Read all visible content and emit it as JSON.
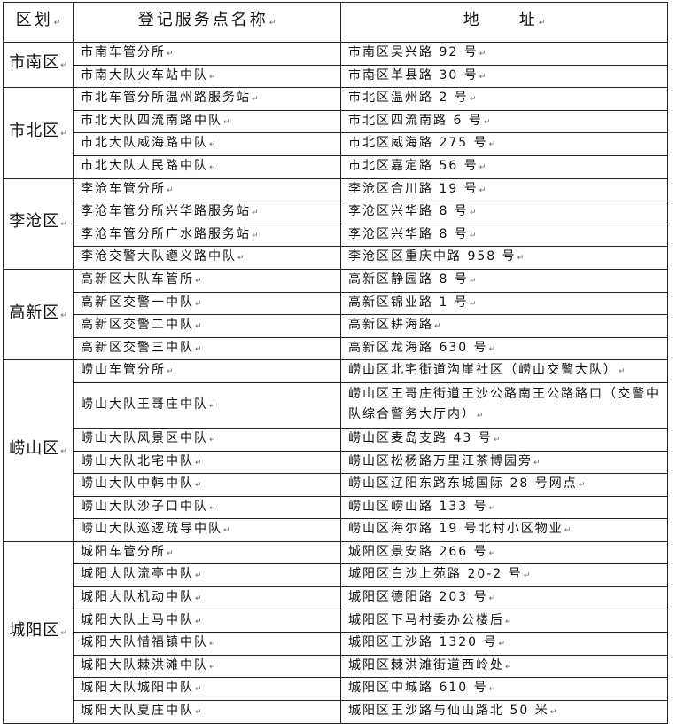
{
  "header": {
    "district": "区划",
    "name": "登记服务点名称",
    "address": "地　　址"
  },
  "groups": [
    {
      "district": "市南区",
      "rows": [
        [
          "市南车管分所",
          "市南区吴兴路 92 号"
        ],
        [
          "市南大队火车站中队",
          "市南区单县路 30 号"
        ]
      ]
    },
    {
      "district": "市北区",
      "rows": [
        [
          "市北车管分所温州路服务站",
          "市北区温州路 2 号"
        ],
        [
          "市北大队四流南路中队",
          "市北区四流南路 6 号"
        ],
        [
          "市北大队威海路中队",
          "市北区威海路 275 号"
        ],
        [
          "市北大队人民路中队",
          "市北区嘉定路 56 号"
        ]
      ]
    },
    {
      "district": "李沧区",
      "rows": [
        [
          "李沧车管分所",
          "李沧区合川路 19 号"
        ],
        [
          "李沧车管分所兴华路服务站",
          "李沧区兴华路 8 号"
        ],
        [
          "李沧车管分所广水路服务站",
          "李沧区兴华路 8 号"
        ],
        [
          "李沧交警大队遵义路中队",
          "李沧区区重庆中路 958 号"
        ]
      ]
    },
    {
      "district": "高新区",
      "rows": [
        [
          "高新区大队车管所",
          "高新区静园路 8 号"
        ],
        [
          "高新区交警一中队",
          "高新区锦业路 1 号"
        ],
        [
          "高新区交警二中队",
          "高新区耕海路"
        ],
        [
          "高新区交警三中队",
          "高新区龙海路 630 号"
        ]
      ]
    },
    {
      "district": "崂山区",
      "rows": [
        [
          "崂山车管分所",
          "崂山区北宅街道沟崖社区（崂山交警大队）"
        ],
        [
          "崂山大队王哥庄中队",
          "崂山区王哥庄街道王沙公路南王公路路口（交警中队综合警务大厅内）"
        ],
        [
          "崂山大队风景区中队",
          "崂山区麦岛支路 43 号"
        ],
        [
          "崂山大队北宅中队",
          "崂山区松杨路万里江茶博园旁"
        ],
        [
          "崂山大队中韩中队",
          "崂山区辽阳东路东城国际 28 号网点"
        ],
        [
          "崂山大队沙子口中队",
          "崂山区崂山路 133 号"
        ],
        [
          "崂山大队巡逻疏导中队",
          "崂山区海尔路 19 号北村小区物业"
        ]
      ]
    },
    {
      "district": "城阳区",
      "rows": [
        [
          "城阳车管分所",
          "城阳区景安路 266 号"
        ],
        [
          "城阳大队流亭中队",
          "城阳区白沙上苑路 20-2 号"
        ],
        [
          "城阳大队机动中队",
          "城阳区德阳路 203 号"
        ],
        [
          "城阳大队上马中队",
          "城阳区下马村委办公楼后"
        ],
        [
          "城阳大队惜福镇中队",
          "城阳区王沙路 1320 号"
        ],
        [
          "城阳大队棘洪滩中队",
          "城阳区棘洪滩街道西岭处"
        ],
        [
          "城阳大队城阳中队",
          "城阳区中城路 610 号"
        ],
        [
          "城阳大队夏庄中队",
          "城阳区王沙路与仙山路北 50 米"
        ]
      ]
    }
  ]
}
